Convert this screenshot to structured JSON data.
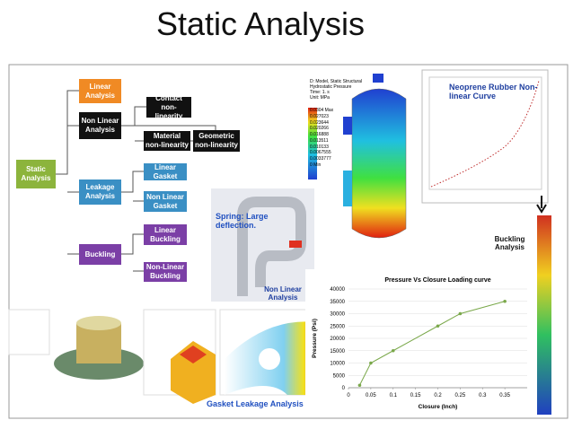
{
  "header": {
    "title": "Static Analysis"
  },
  "tree": {
    "nodes": [
      "Static Analysis",
      "Linear Analysis",
      "Non Linear Analysis",
      "Contact non-linearity",
      "Material non-linearity",
      "Geometric non-linearity",
      "Leakage Analysis",
      "Linear Gasket",
      "Non Linear Gasket",
      "Buckling",
      "Linear Buckling",
      "Non-Linear Buckling"
    ]
  },
  "figures": {
    "contour": {
      "header": [
        "D: Model, Static Structural",
        "Hydrostatic Pressure",
        "Time: 1. s",
        "Unit: MPa"
      ],
      "legend": [
        "0.0304 Max",
        "0.027023",
        "0.023644",
        "0.020266",
        "0.016888",
        "0.013511",
        "0.010133",
        "0.0067555",
        "0.0033777",
        "0 Min"
      ]
    },
    "rubber": "Neoprene Rubber Non-linear Curve",
    "spring": "Spring: Large deflection.",
    "spring_caption": "Non Linear Analysis",
    "buckling": "Buckling Analysis",
    "gasket": "Gasket Leakage Analysis"
  },
  "chart_data": {
    "type": "line",
    "title": "Pressure Vs Closure Loading curve",
    "x_label": "Closure (Inch)",
    "y_label": "Pressure (Psi)",
    "x": [
      0.025,
      0.05,
      0.1,
      0.2,
      0.25,
      0.35
    ],
    "series": [
      {
        "name": "Pressure",
        "color": "#7aa84a",
        "values": [
          1000,
          10000,
          15000,
          25000,
          30000,
          35000
        ]
      }
    ],
    "xlim": [
      0,
      0.4
    ],
    "xticks": [
      0,
      0.05,
      0.1,
      0.15,
      0.2,
      0.25,
      0.3,
      0.35
    ],
    "ylim": [
      0,
      40000
    ],
    "yticks": [
      0,
      5000,
      10000,
      15000,
      20000,
      25000,
      30000,
      35000,
      40000
    ],
    "grid": true
  }
}
